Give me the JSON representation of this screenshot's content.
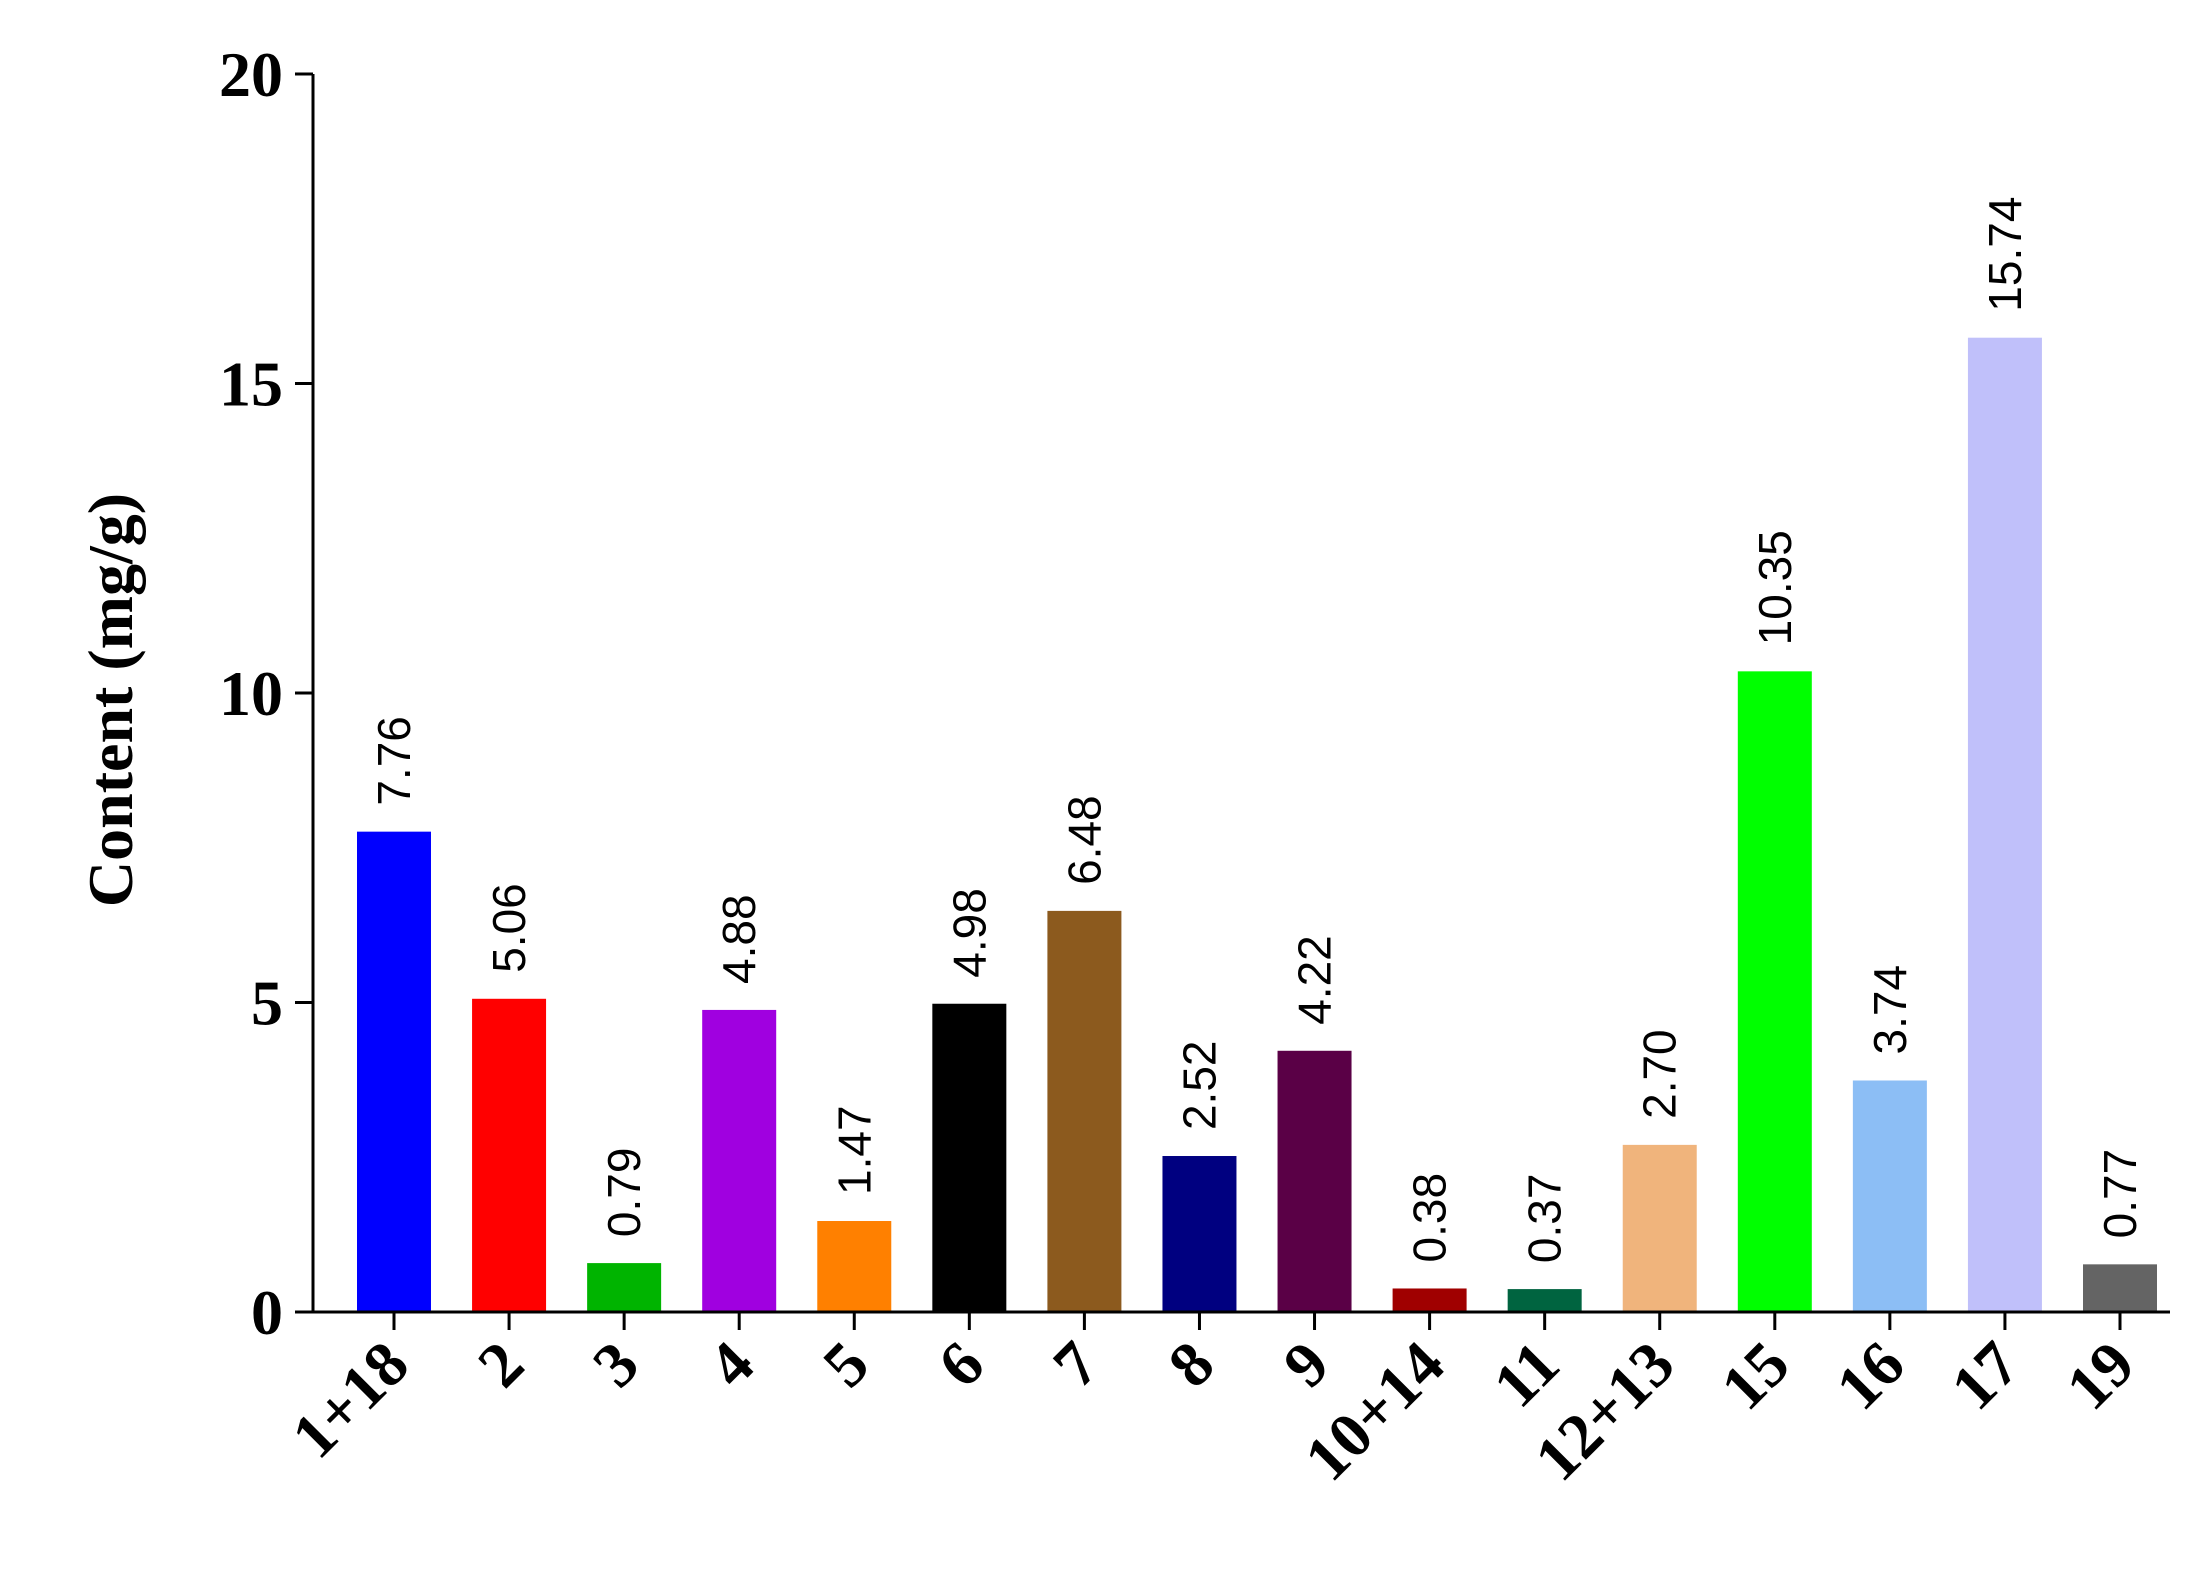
{
  "chart_data": {
    "type": "bar",
    "title": "",
    "xlabel": "",
    "ylabel": "Content (mg/g)",
    "ylim": [
      0,
      20
    ],
    "yticks": [
      "0",
      "5",
      "10",
      "15",
      "20"
    ],
    "grid": false,
    "legend": "none",
    "categories": [
      "1+18",
      "2",
      "3",
      "4",
      "5",
      "6",
      "7",
      "8",
      "9",
      "10+14",
      "11",
      "12+13",
      "15",
      "16",
      "17",
      "19"
    ],
    "values": [
      7.76,
      5.06,
      0.79,
      4.88,
      1.47,
      4.98,
      6.48,
      2.52,
      4.22,
      0.38,
      0.37,
      2.7,
      10.35,
      3.74,
      15.74,
      0.77
    ],
    "value_labels": [
      "7.76",
      "5.06",
      "0.79",
      "4.88",
      "1.47",
      "4.98",
      "6.48",
      "2.52",
      "4.22",
      "0.38",
      "0.37",
      "2.70",
      "10.35",
      "3.74",
      "15.74",
      "0.77"
    ],
    "colors": [
      "#0000FF",
      "#FF0000",
      "#00B400",
      "#A000E0",
      "#FF8000",
      "#000000",
      "#8C5A1E",
      "#000080",
      "#5A0046",
      "#A00000",
      "#006440",
      "#F0B47C",
      "#00FF00",
      "#8CBEF5",
      "#C0C0FA",
      "#646464"
    ]
  }
}
